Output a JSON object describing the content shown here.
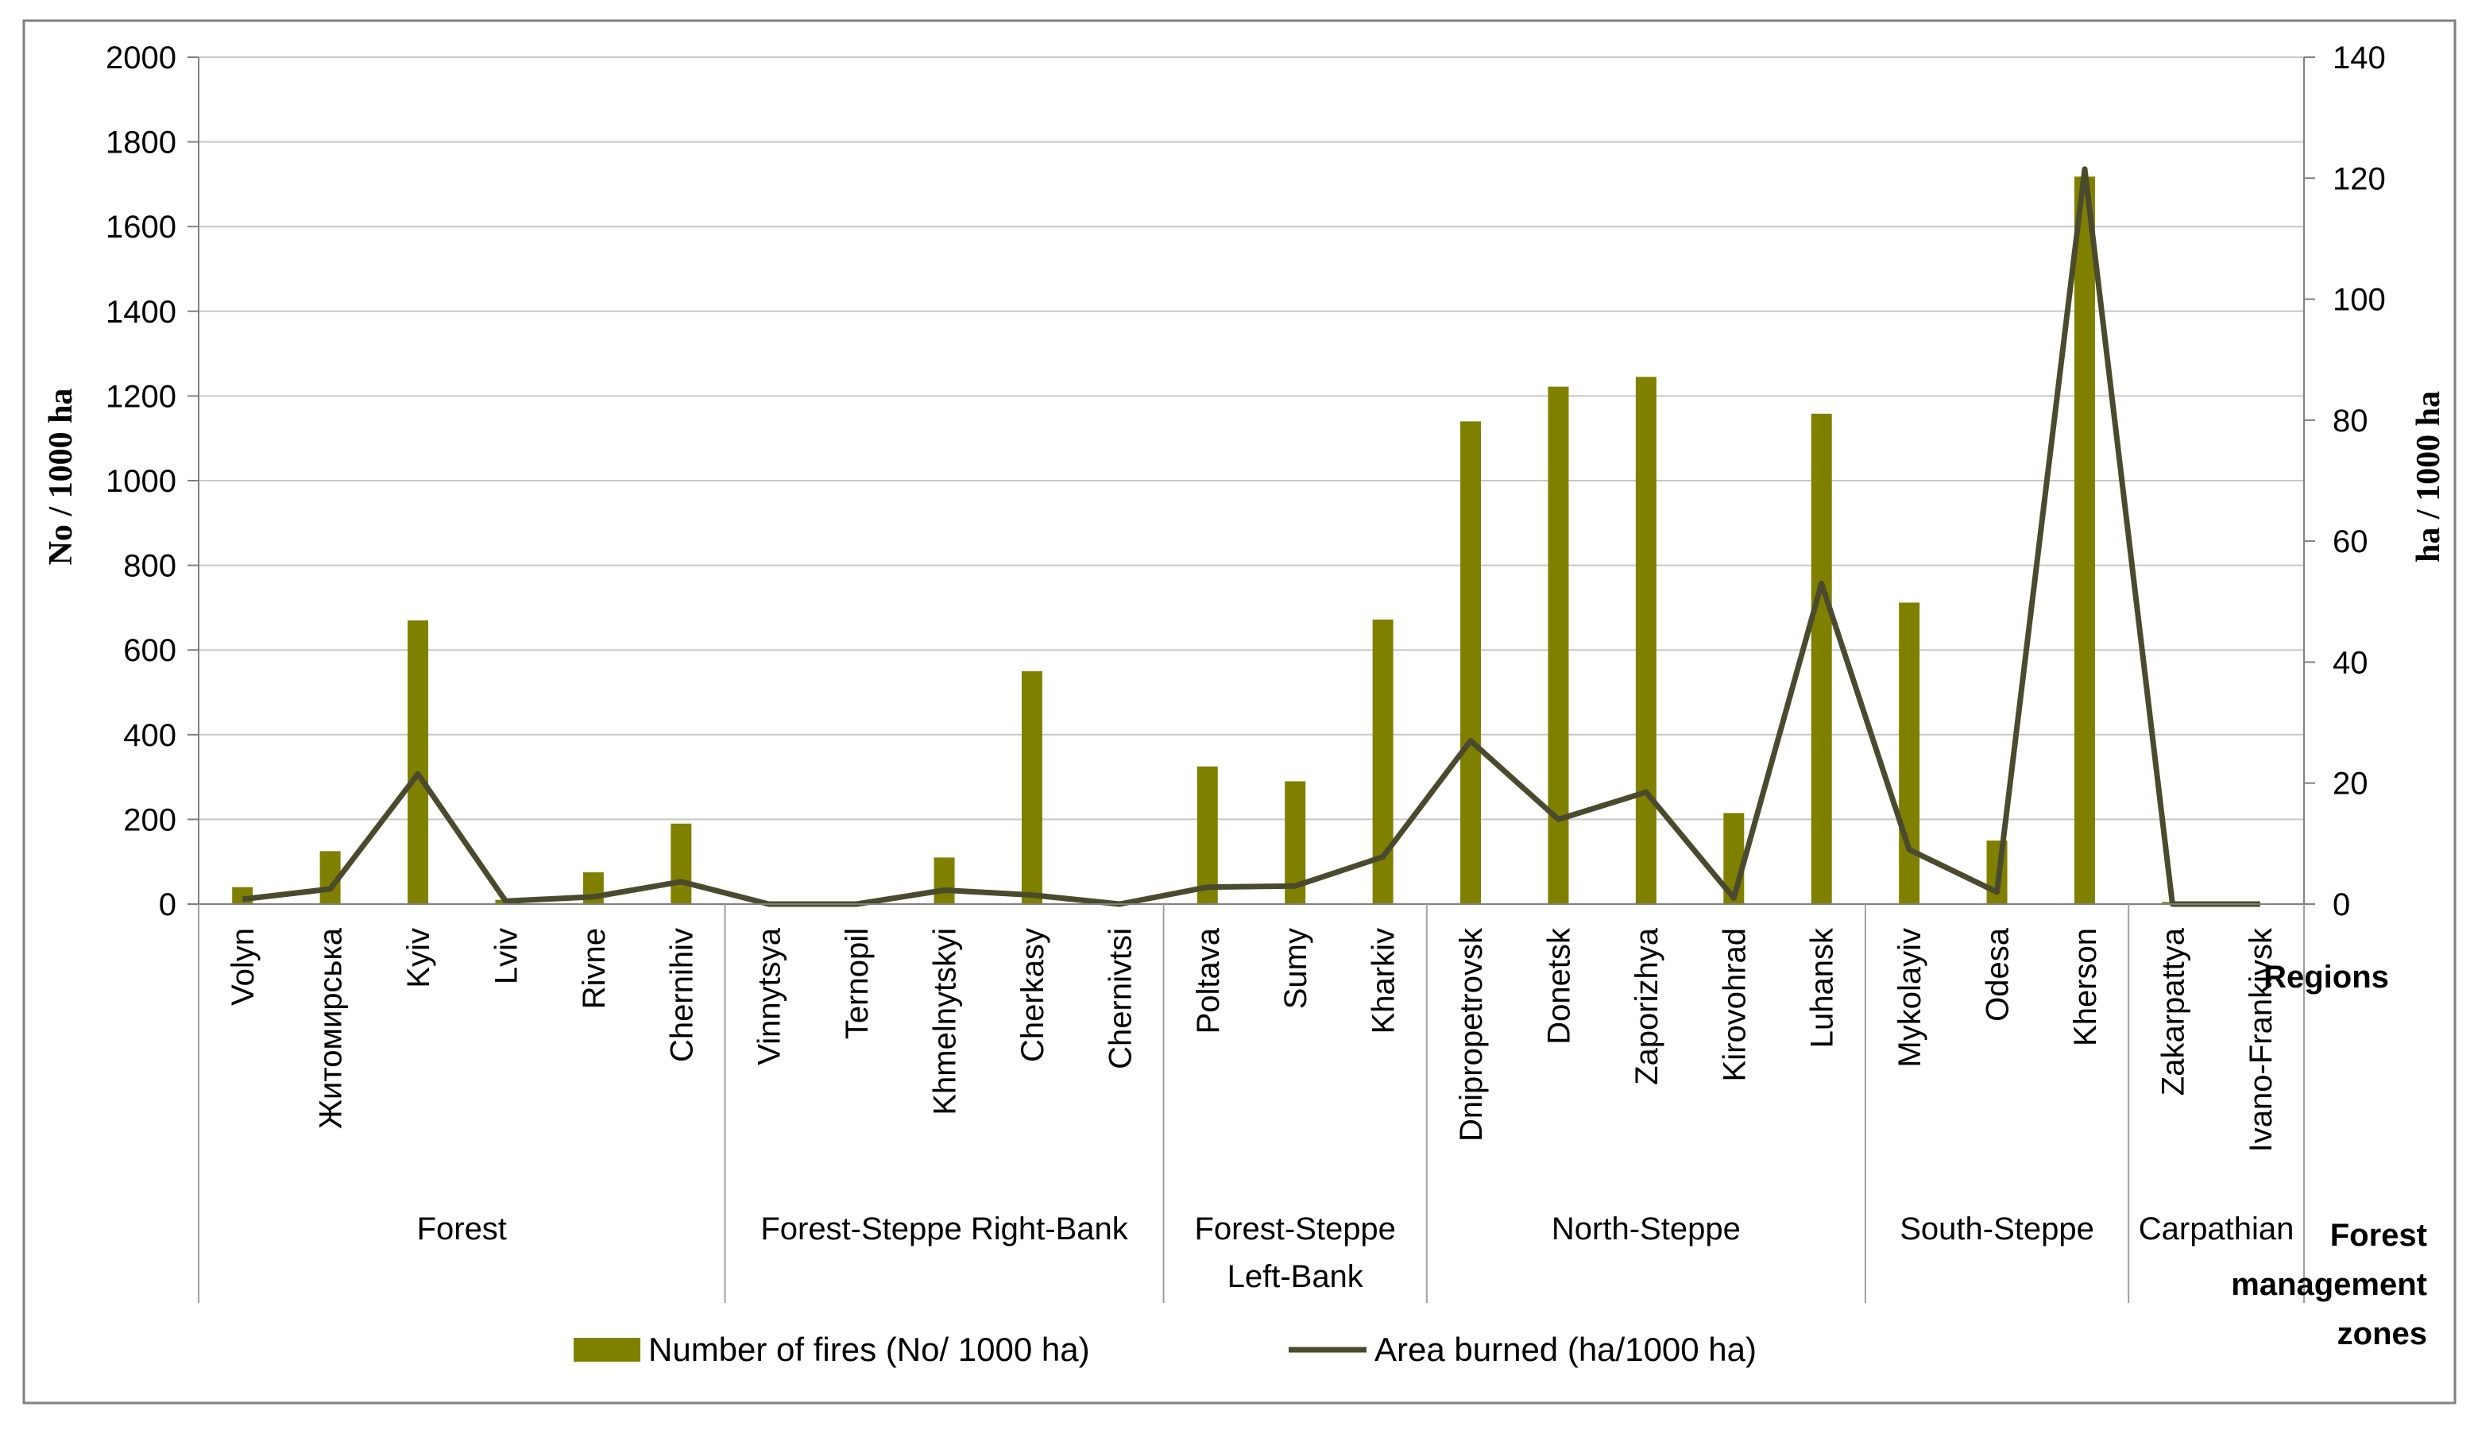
{
  "chart_data": {
    "type": "bar",
    "categories": [
      "Volyn",
      "Житомирська",
      "Kyiv",
      "Lviv",
      "Rivne",
      "Chernihiv",
      "Vinnytsya",
      "Ternopil",
      "Khmelnytskyi",
      "Cherkasy",
      "Chernivtsi",
      "Poltava",
      "Sumy",
      "Kharkiv",
      "Dnipropetrovsk",
      "Donetsk",
      "Zaporizhya",
      "Kirovohrad",
      "Luhansk",
      "Mykolayiv",
      "Odesa",
      "Kherson",
      "Zakarpattya",
      "Ivano-Frankivsk"
    ],
    "zones": [
      {
        "label": "Forest",
        "count": 6
      },
      {
        "label": "Forest-Steppe Right-Bank",
        "count": 5
      },
      {
        "label": "Forest-Steppe Left-Bank",
        "count": 3
      },
      {
        "label": "North-Steppe",
        "count": 5
      },
      {
        "label": "South-Steppe",
        "count": 3
      },
      {
        "label": "Carpathian",
        "count": 2
      }
    ],
    "series": [
      {
        "name": "Number of fires (No/ 1000 ha)",
        "kind": "bar",
        "axis": "left",
        "color": "#808000",
        "values": [
          40,
          125,
          670,
          10,
          75,
          190,
          0,
          0,
          110,
          550,
          0,
          325,
          290,
          672,
          1140,
          1222,
          1245,
          215,
          1158,
          712,
          150,
          1718,
          5,
          0
        ]
      },
      {
        "name": "Area burned (ha/1000 ha)",
        "kind": "line",
        "axis": "right",
        "color": "#4a4a2e",
        "values": [
          0.8,
          2.5,
          21.5,
          0.5,
          1.2,
          3.7,
          0,
          0,
          2.3,
          1.5,
          0,
          2.8,
          3.0,
          7.8,
          27.0,
          14.0,
          18.5,
          1.0,
          53.0,
          9.0,
          2.0,
          121.5,
          0,
          0
        ]
      }
    ],
    "ylabel": "No / 1000 ha",
    "ylabel_right": "ha / 1000 ha",
    "ylim": [
      0,
      2000
    ],
    "ylim_right": [
      0,
      140
    ],
    "yticks": [
      0,
      200,
      400,
      600,
      800,
      1000,
      1200,
      1400,
      1600,
      1800,
      2000
    ],
    "yticks_right": [
      0,
      20,
      40,
      60,
      80,
      100,
      120,
      140
    ],
    "x_level_labels": [
      "Regions",
      "Forest management zones"
    ],
    "legend_position": "bottom",
    "grid": true
  }
}
